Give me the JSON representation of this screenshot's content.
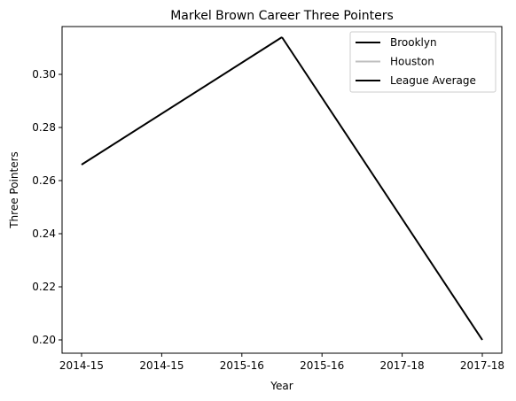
{
  "chart_data": {
    "type": "line",
    "title": "Markel Brown Career Three Pointers",
    "xlabel": "Year",
    "ylabel": "Three Pointers",
    "x_ticks": [
      "2014-15",
      "2014-15",
      "2015-16",
      "2015-16",
      "2017-18",
      "2017-18"
    ],
    "x_range": [
      0,
      2
    ],
    "ylim": [
      0.195,
      0.318
    ],
    "y_ticks": [
      0.2,
      0.22,
      0.24,
      0.26,
      0.28,
      0.3
    ],
    "grid": false,
    "legend_position": "top-right",
    "series": [
      {
        "name": "Brooklyn",
        "color": "#000000",
        "x": [
          0,
          1
        ],
        "y": [
          0.266,
          0.314
        ]
      },
      {
        "name": "Houston",
        "color": "#bfbfbf",
        "x": [],
        "y": []
      },
      {
        "name": "League Average",
        "color": "#000000",
        "x": [
          1,
          2
        ],
        "y": [
          0.314,
          0.2
        ]
      }
    ]
  }
}
